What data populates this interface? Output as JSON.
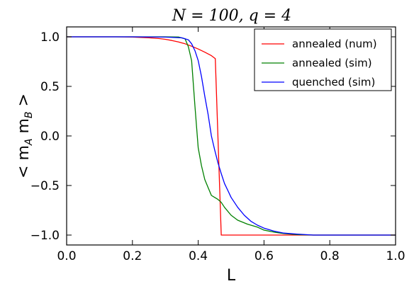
{
  "chart_data": {
    "type": "line",
    "title": "N = 100,  q = 4",
    "xlabel": "L",
    "ylabel": "< m_A m_B >",
    "xlim": [
      0.0,
      1.0
    ],
    "ylim": [
      -1.1,
      1.1
    ],
    "xticks": [
      "0.0",
      "0.2",
      "0.4",
      "0.6",
      "0.8",
      "1.0"
    ],
    "yticks": [
      "1.0",
      "0.5",
      "0.0",
      "−0.5",
      "−1.0"
    ],
    "grid": false,
    "legend_position": "top-right",
    "series": [
      {
        "name": "annealed (num)",
        "color": "#ff0000",
        "x": [
          0.0,
          0.05,
          0.1,
          0.15,
          0.2,
          0.25,
          0.28,
          0.3,
          0.32,
          0.34,
          0.36,
          0.38,
          0.4,
          0.42,
          0.44,
          0.45,
          0.452,
          0.47,
          0.5,
          0.6,
          0.7,
          0.8,
          0.9,
          1.0
        ],
        "y": [
          1.0,
          1.0,
          1.0,
          1.0,
          0.998,
          0.99,
          0.983,
          0.975,
          0.963,
          0.948,
          0.93,
          0.905,
          0.877,
          0.845,
          0.81,
          0.785,
          0.78,
          -1.0,
          -1.0,
          -1.0,
          -1.0,
          -1.0,
          -1.0,
          -1.0
        ]
      },
      {
        "name": "annealed (sim)",
        "color": "#008000",
        "x": [
          0.0,
          0.1,
          0.2,
          0.3,
          0.34,
          0.36,
          0.37,
          0.38,
          0.39,
          0.4,
          0.41,
          0.42,
          0.43,
          0.44,
          0.45,
          0.46,
          0.47,
          0.48,
          0.5,
          0.52,
          0.55,
          0.58,
          0.6,
          0.63,
          0.66,
          0.7,
          0.75,
          0.8,
          0.9,
          1.0
        ],
        "y": [
          1.0,
          1.0,
          1.0,
          1.0,
          0.998,
          0.98,
          0.9,
          0.76,
          0.3,
          -0.12,
          -0.3,
          -0.44,
          -0.52,
          -0.6,
          -0.62,
          -0.64,
          -0.67,
          -0.72,
          -0.8,
          -0.85,
          -0.89,
          -0.92,
          -0.95,
          -0.97,
          -0.985,
          -0.995,
          -1.0,
          -1.0,
          -1.0,
          -1.0
        ]
      },
      {
        "name": "quenched (sim)",
        "color": "#0000ff",
        "x": [
          0.0,
          0.1,
          0.2,
          0.3,
          0.35,
          0.37,
          0.38,
          0.39,
          0.4,
          0.41,
          0.42,
          0.43,
          0.44,
          0.45,
          0.46,
          0.47,
          0.48,
          0.49,
          0.5,
          0.52,
          0.54,
          0.56,
          0.58,
          0.6,
          0.63,
          0.66,
          0.7,
          0.75,
          0.8,
          0.9,
          1.0
        ],
        "y": [
          1.0,
          1.0,
          1.0,
          0.997,
          0.99,
          0.97,
          0.93,
          0.86,
          0.76,
          0.6,
          0.4,
          0.22,
          0.0,
          -0.14,
          -0.27,
          -0.38,
          -0.48,
          -0.55,
          -0.62,
          -0.72,
          -0.8,
          -0.86,
          -0.9,
          -0.93,
          -0.96,
          -0.98,
          -0.99,
          -1.0,
          -1.0,
          -1.0,
          -1.0
        ]
      }
    ]
  }
}
